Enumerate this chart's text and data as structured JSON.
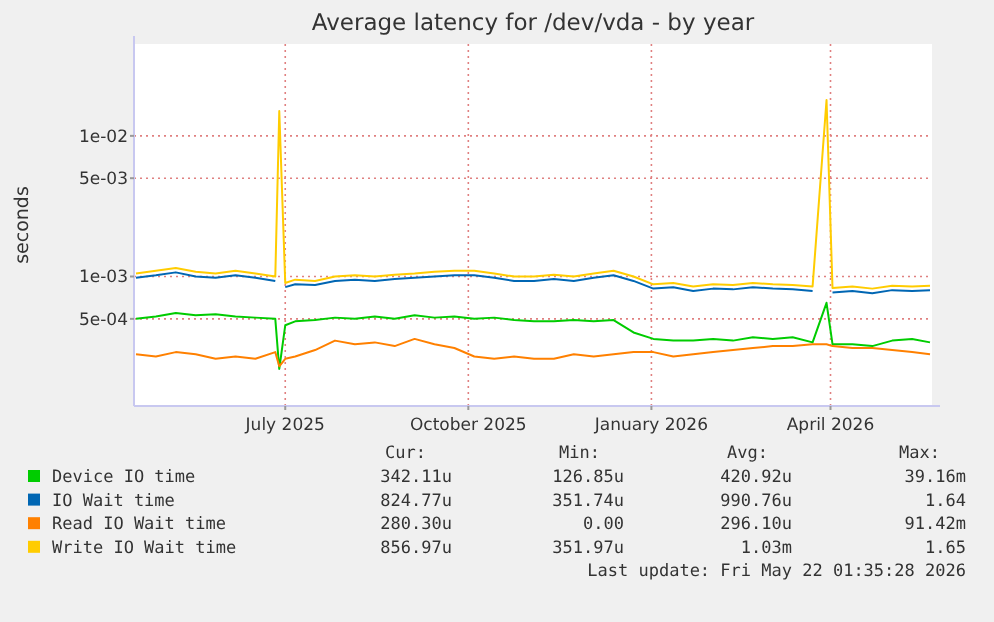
{
  "chart_data": {
    "type": "line",
    "title": "Average latency for /dev/vda - by year",
    "ylabel": "seconds",
    "log": "y",
    "grid": true,
    "legend": "bottom",
    "marker": "none",
    "line_style": "solid",
    "xlim": [
      "2025-04-16",
      "2026-05-22"
    ],
    "xticks": [
      {
        "value": "2025-07-01",
        "label": "July 2025"
      },
      {
        "value": "2025-10-01",
        "label": "October 2025"
      },
      {
        "value": "2026-01-01",
        "label": "January 2026"
      },
      {
        "value": "2026-04-01",
        "label": "April 2026"
      }
    ],
    "ylim": [
      0.00012,
      0.045
    ],
    "yticks": [
      {
        "value": 0.0005,
        "label": "5e-04"
      },
      {
        "value": 0.001,
        "label": "1e-03"
      },
      {
        "value": 0.005,
        "label": "5e-03"
      },
      {
        "value": 0.01,
        "label": "1e-02"
      }
    ],
    "x": [
      "2025-04-17",
      "2025-04-27",
      "2025-05-07",
      "2025-05-17",
      "2025-05-27",
      "2025-06-06",
      "2025-06-16",
      "2025-06-26",
      "2025-06-28",
      "2025-07-01",
      "2025-07-06",
      "2025-07-16",
      "2025-07-26",
      "2025-08-05",
      "2025-08-15",
      "2025-08-25",
      "2025-09-04",
      "2025-09-14",
      "2025-09-24",
      "2025-10-04",
      "2025-10-14",
      "2025-10-24",
      "2025-11-03",
      "2025-11-13",
      "2025-11-23",
      "2025-12-03",
      "2025-12-13",
      "2025-12-23",
      "2026-01-02",
      "2026-01-12",
      "2026-01-22",
      "2026-02-01",
      "2026-02-11",
      "2026-02-21",
      "2026-03-03",
      "2026-03-13",
      "2026-03-23",
      "2026-03-30",
      "2026-04-02",
      "2026-04-12",
      "2026-04-22",
      "2026-05-02",
      "2026-05-12",
      "2026-05-21"
    ],
    "series": [
      {
        "name": "Device IO time",
        "color": "#00cc00",
        "values": [
          0.0005,
          0.00052,
          0.00055,
          0.00053,
          0.00054,
          0.00052,
          0.00051,
          0.0005,
          0.00022,
          0.00045,
          0.00048,
          0.00049,
          0.00051,
          0.0005,
          0.00052,
          0.0005,
          0.00053,
          0.00051,
          0.00052,
          0.0005,
          0.00051,
          0.00049,
          0.00048,
          0.00048,
          0.00049,
          0.00048,
          0.00049,
          0.0004,
          0.00036,
          0.00035,
          0.00035,
          0.00036,
          0.00035,
          0.00037,
          0.00036,
          0.00037,
          0.00034,
          0.00065,
          0.00033,
          0.00033,
          0.00032,
          0.00035,
          0.00036,
          0.00034
        ]
      },
      {
        "name": "IO Wait time",
        "color": "#0066b3",
        "values": [
          0.00098,
          0.00102,
          0.00107,
          0.001,
          0.00098,
          0.00102,
          0.00098,
          0.00093,
          null,
          0.00084,
          0.00088,
          0.00087,
          0.00093,
          0.00095,
          0.00093,
          0.00096,
          0.00098,
          0.001,
          0.00102,
          0.00102,
          0.00098,
          0.00093,
          0.00093,
          0.00096,
          0.00093,
          0.00098,
          0.00102,
          0.00093,
          0.00082,
          0.00084,
          0.00079,
          0.00082,
          0.00081,
          0.00084,
          0.00082,
          0.00081,
          0.00079,
          null,
          0.00077,
          0.00079,
          0.00076,
          0.0008,
          0.00079,
          0.0008
        ]
      },
      {
        "name": "Read IO Wait time",
        "color": "#ff8000",
        "values": [
          0.00028,
          0.00027,
          0.00029,
          0.00028,
          0.00026,
          0.00027,
          0.00026,
          0.00029,
          0.00023,
          0.00026,
          0.00027,
          0.0003,
          0.00035,
          0.00033,
          0.00034,
          0.00032,
          0.00036,
          0.00033,
          0.00031,
          0.00027,
          0.00026,
          0.00027,
          0.00026,
          0.00026,
          0.00028,
          0.00027,
          0.00028,
          0.00029,
          0.00029,
          0.00027,
          0.00028,
          0.00029,
          0.0003,
          0.00031,
          0.00032,
          0.00032,
          0.00033,
          0.00033,
          0.00032,
          0.00031,
          0.00031,
          0.0003,
          0.00029,
          0.00028
        ]
      },
      {
        "name": "Write IO Wait time",
        "color": "#ffcc00",
        "values": [
          0.00105,
          0.0011,
          0.00115,
          0.00108,
          0.00105,
          0.0011,
          0.00105,
          0.001,
          0.015,
          0.0009,
          0.00095,
          0.00093,
          0.001,
          0.00102,
          0.001,
          0.00103,
          0.00105,
          0.00108,
          0.0011,
          0.0011,
          0.00105,
          0.001,
          0.001,
          0.00103,
          0.001,
          0.00105,
          0.0011,
          0.001,
          0.00088,
          0.0009,
          0.00085,
          0.00088,
          0.00087,
          0.0009,
          0.00088,
          0.00087,
          0.00085,
          0.018,
          0.00083,
          0.00085,
          0.00082,
          0.00086,
          0.00085,
          0.00086
        ]
      }
    ],
    "annotations": [
      "Cur:",
      "Min:",
      "Avg:",
      "Max:",
      "342.11u",
      "126.85u",
      "420.92u",
      "39.16m",
      "824.77u",
      "351.74u",
      "990.76u",
      "1.64",
      "280.30u",
      "0.00",
      "296.10u",
      "91.42m",
      "856.97u",
      "351.97u",
      "1.03m",
      "1.65",
      "Last update: Fri May 22 01:35:28 2026"
    ]
  }
}
